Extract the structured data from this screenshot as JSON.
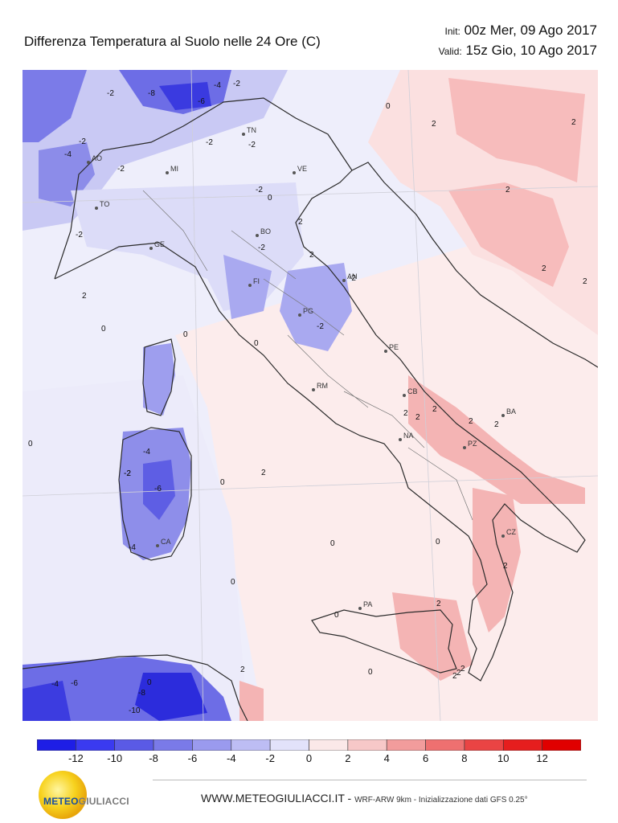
{
  "title": "Differenza Temperatura al Suolo nelle 24 Ore   (C)",
  "init_label": "Init:",
  "init_value": "00z Mer, 09 Ago 2017",
  "valid_label": "Valid:",
  "valid_value": "15z Gio, 10 Ago 2017",
  "cities": [
    {
      "code": "AO"
    },
    {
      "code": "TO"
    },
    {
      "code": "MI"
    },
    {
      "code": "TN"
    },
    {
      "code": "VE"
    },
    {
      "code": "GE"
    },
    {
      "code": "BO"
    },
    {
      "code": "FI"
    },
    {
      "code": "AN"
    },
    {
      "code": "PG"
    },
    {
      "code": "PE"
    },
    {
      "code": "RM"
    },
    {
      "code": "CB"
    },
    {
      "code": "NA"
    },
    {
      "code": "BA"
    },
    {
      "code": "PZ"
    },
    {
      "code": "CZ"
    },
    {
      "code": "PA"
    },
    {
      "code": "CA"
    }
  ],
  "contour_labels": [
    "-2",
    "-8",
    "-4",
    "-2",
    "-6",
    "0",
    "-2",
    "-2",
    "-4",
    "-2",
    "-2",
    "-2",
    "0",
    "2",
    "2",
    "2",
    "2",
    "2",
    "-2",
    "-2",
    "0",
    "2",
    "0",
    "2",
    "-2",
    "2",
    "-2",
    "0",
    "2",
    "2",
    "0",
    "-2",
    "0",
    "2",
    "0",
    "0",
    "2",
    "2",
    "2",
    "0",
    "-4",
    "-2",
    "-6",
    "-4",
    "0",
    "0",
    "0",
    "2",
    "2",
    "2",
    "-4",
    "-6",
    "-8",
    "-10",
    "2",
    "0",
    "2",
    "2"
  ],
  "colorbar": {
    "ticks": [
      "-12",
      "-10",
      "-8",
      "-6",
      "-4",
      "-2",
      "0",
      "2",
      "4",
      "6",
      "8",
      "10",
      "12"
    ],
    "colors": [
      "#1e1ee6",
      "#3a3af0",
      "#5a5ae6",
      "#7a7ae8",
      "#9a9aee",
      "#bdbdf4",
      "#e2e2fa",
      "#fbe8e8",
      "#f7c8c8",
      "#f29c9c",
      "#ee7070",
      "#ea4444",
      "#e61e1e",
      "#e00000"
    ]
  },
  "logo": {
    "word1": "METEO",
    "word2": "GIULIACCI"
  },
  "footer": {
    "site": "WWW.METEOGIULIACCI.IT - ",
    "model": "WRF-ARW 9km - Inizializzazione dati GFS 0.25°"
  }
}
